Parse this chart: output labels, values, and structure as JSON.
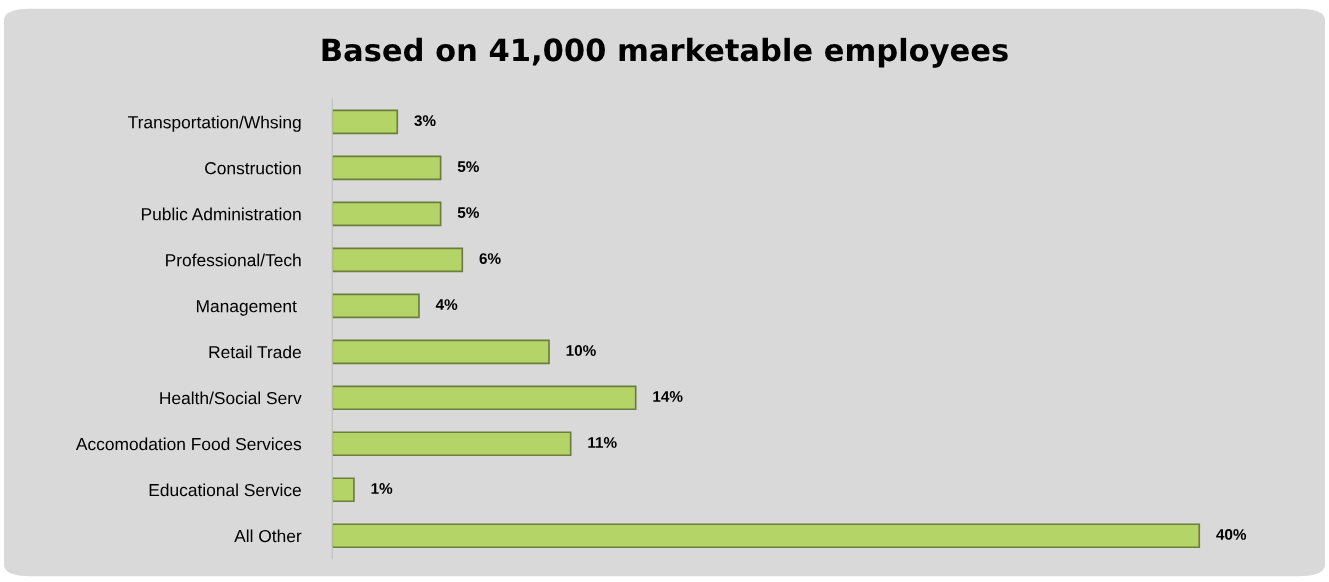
{
  "chart_data": {
    "type": "bar",
    "orientation": "horizontal",
    "title": "Based on 41,000 marketable employees",
    "categories": [
      "Transportation/Whsing",
      "Construction",
      "Public Administration",
      "Professional/Tech",
      "Management ",
      "Retail Trade",
      "Health/Social Serv",
      "Accomodation Food Services",
      "Educational Service",
      "All Other"
    ],
    "values": [
      3,
      5,
      5,
      6,
      4,
      10,
      14,
      11,
      1,
      40
    ],
    "value_labels": [
      "3%",
      "5%",
      "5%",
      "6%",
      "4%",
      "10%",
      "14%",
      "11%",
      "1%",
      "40%"
    ],
    "color": "#b4d468",
    "grid": false,
    "legend": false
  }
}
